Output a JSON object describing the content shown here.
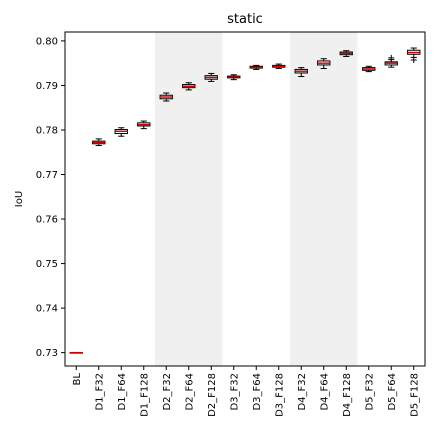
{
  "chart_data": {
    "type": "box",
    "title": "static",
    "xlabel": "",
    "ylabel": "IoU",
    "ylim": [
      0.727,
      0.802
    ],
    "yticks": [
      0.73,
      0.74,
      0.75,
      0.76,
      0.77,
      0.78,
      0.79,
      0.8
    ],
    "ytick_labels": [
      "0.73",
      "0.74",
      "0.75",
      "0.76",
      "0.77",
      "0.78",
      "0.79",
      "0.80"
    ],
    "grid": false,
    "shaded_groups": [
      "D2",
      "D4"
    ],
    "colors": {
      "box": "#000000",
      "median": "#cc0000",
      "shade": "#f0f0f0"
    },
    "categories": [
      "BL",
      "D1_F32",
      "D1_F64",
      "D1_F128",
      "D2_F32",
      "D2_F64",
      "D2_F128",
      "D3_F32",
      "D3_F64",
      "D3_F128",
      "D4_F32",
      "D4_F64",
      "D4_F128",
      "D5_F32",
      "D5_F64",
      "D5_F128"
    ],
    "boxes": [
      {
        "median": 0.73,
        "q1": 0.73,
        "q3": 0.73,
        "whislo": 0.73,
        "whishi": 0.73,
        "fliers": []
      },
      {
        "median": 0.7772,
        "q1": 0.7769,
        "q3": 0.7775,
        "whislo": 0.7765,
        "whishi": 0.778,
        "fliers": []
      },
      {
        "median": 0.7797,
        "q1": 0.7792,
        "q3": 0.7801,
        "whislo": 0.7786,
        "whishi": 0.7805,
        "fliers": []
      },
      {
        "median": 0.7812,
        "q1": 0.7809,
        "q3": 0.7816,
        "whislo": 0.7803,
        "whishi": 0.782,
        "fliers": []
      },
      {
        "median": 0.7874,
        "q1": 0.787,
        "q3": 0.7878,
        "whislo": 0.7865,
        "whishi": 0.7883,
        "fliers": []
      },
      {
        "median": 0.7898,
        "q1": 0.7895,
        "q3": 0.7902,
        "whislo": 0.789,
        "whishi": 0.7906,
        "fliers": []
      },
      {
        "median": 0.7918,
        "q1": 0.7914,
        "q3": 0.7922,
        "whislo": 0.7909,
        "whishi": 0.7927,
        "fliers": []
      },
      {
        "median": 0.7919,
        "q1": 0.7917,
        "q3": 0.7921,
        "whislo": 0.7913,
        "whishi": 0.7924,
        "fliers": []
      },
      {
        "median": 0.7941,
        "q1": 0.7939,
        "q3": 0.7943,
        "whislo": 0.7936,
        "whishi": 0.7945,
        "fliers": []
      },
      {
        "median": 0.7943,
        "q1": 0.7941,
        "q3": 0.7945,
        "whislo": 0.7938,
        "whishi": 0.7948,
        "fliers": []
      },
      {
        "median": 0.7932,
        "q1": 0.7928,
        "q3": 0.7936,
        "whislo": 0.792,
        "whishi": 0.794,
        "fliers": []
      },
      {
        "median": 0.795,
        "q1": 0.7946,
        "q3": 0.7955,
        "whislo": 0.7938,
        "whishi": 0.796,
        "fliers": []
      },
      {
        "median": 0.7972,
        "q1": 0.7969,
        "q3": 0.7975,
        "whislo": 0.7965,
        "whishi": 0.7978,
        "fliers": []
      },
      {
        "median": 0.7937,
        "q1": 0.7934,
        "q3": 0.794,
        "whislo": 0.7931,
        "whishi": 0.7943,
        "fliers": []
      },
      {
        "median": 0.795,
        "q1": 0.7946,
        "q3": 0.7953,
        "whislo": 0.7941,
        "whishi": 0.7958,
        "fliers": [
          0.7962
        ]
      },
      {
        "median": 0.7974,
        "q1": 0.797,
        "q3": 0.7979,
        "whislo": 0.7963,
        "whishi": 0.7984,
        "fliers": [
          0.7957
        ]
      }
    ]
  }
}
